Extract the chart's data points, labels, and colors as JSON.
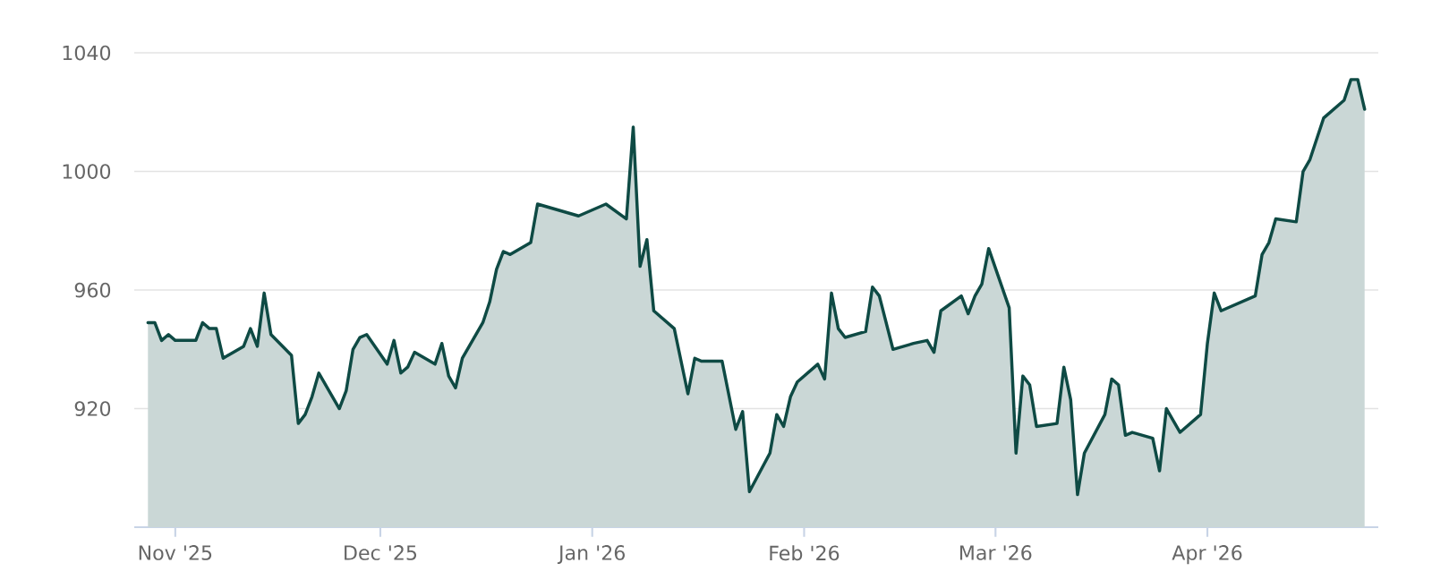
{
  "chart_data": {
    "type": "area",
    "color": "#0e4a44",
    "x": [
      "2025-10-28",
      "2025-10-29",
      "2025-10-30",
      "2025-10-31",
      "2025-11-01",
      "2025-11-04",
      "2025-11-05",
      "2025-11-06",
      "2025-11-07",
      "2025-11-08",
      "2025-11-11",
      "2025-11-12",
      "2025-11-13",
      "2025-11-14",
      "2025-11-15",
      "2025-11-18",
      "2025-11-19",
      "2025-11-20",
      "2025-11-21",
      "2025-11-22",
      "2025-11-25",
      "2025-11-26",
      "2025-11-27",
      "2025-11-28",
      "2025-11-29",
      "2025-12-02",
      "2025-12-03",
      "2025-12-04",
      "2025-12-05",
      "2025-12-06",
      "2025-12-09",
      "2025-12-10",
      "2025-12-11",
      "2025-12-12",
      "2025-12-13",
      "2025-12-16",
      "2025-12-17",
      "2025-12-18",
      "2025-12-19",
      "2025-12-20",
      "2025-12-23",
      "2025-12-24",
      "2025-12-30",
      "2026-01-03",
      "2026-01-06",
      "2026-01-07",
      "2026-01-08",
      "2026-01-09",
      "2026-01-10",
      "2026-01-13",
      "2026-01-15",
      "2026-01-16",
      "2026-01-17",
      "2026-01-20",
      "2026-01-22",
      "2026-01-23",
      "2026-01-24",
      "2026-01-27",
      "2026-01-28",
      "2026-01-29",
      "2026-01-30",
      "2026-01-31",
      "2026-02-03",
      "2026-02-04",
      "2026-02-05",
      "2026-02-06",
      "2026-02-07",
      "2026-02-10",
      "2026-02-11",
      "2026-02-12",
      "2026-02-14",
      "2026-02-17",
      "2026-02-19",
      "2026-02-20",
      "2026-02-21",
      "2026-02-24",
      "2026-02-25",
      "2026-02-26",
      "2026-02-27",
      "2026-02-28",
      "2026-03-03",
      "2026-03-04",
      "2026-03-05",
      "2026-03-06",
      "2026-03-07",
      "2026-03-10",
      "2026-03-11",
      "2026-03-12",
      "2026-03-13",
      "2026-03-14",
      "2026-03-17",
      "2026-03-18",
      "2026-03-19",
      "2026-03-20",
      "2026-03-21",
      "2026-03-24",
      "2026-03-25",
      "2026-03-26",
      "2026-03-28",
      "2026-03-31",
      "2026-04-01",
      "2026-04-02",
      "2026-04-03",
      "2026-04-08",
      "2026-04-09",
      "2026-04-10",
      "2026-04-11",
      "2026-04-14",
      "2026-04-15",
      "2026-04-16",
      "2026-04-18",
      "2026-04-21",
      "2026-04-22",
      "2026-04-23",
      "2026-04-24"
    ],
    "values": [
      949,
      949,
      943,
      945,
      943,
      943,
      949,
      947,
      947,
      937,
      941,
      947,
      941,
      959,
      945,
      938,
      915,
      918,
      924,
      932,
      920,
      926,
      940,
      944,
      945,
      935,
      943,
      932,
      934,
      939,
      935,
      942,
      931,
      927,
      937,
      949,
      956,
      967,
      973,
      972,
      976,
      989,
      985,
      989,
      984,
      1015,
      968,
      977,
      953,
      947,
      925,
      937,
      936,
      936,
      913,
      919,
      892,
      905,
      918,
      914,
      924,
      929,
      935,
      930,
      959,
      947,
      944,
      946,
      961,
      958,
      940,
      942,
      943,
      939,
      953,
      958,
      952,
      958,
      962,
      974,
      954,
      905,
      931,
      928,
      914,
      915,
      934,
      923,
      891,
      905,
      918,
      930,
      928,
      911,
      912,
      910,
      899,
      920,
      912,
      918,
      942,
      959,
      953,
      958,
      972,
      976,
      984,
      983,
      1000,
      1004,
      1018,
      1024,
      1031,
      1031,
      1021
    ],
    "xlim": [
      "2025-10-26",
      "2026-04-26"
    ],
    "xticks": [
      {
        "value": "2025-11-01",
        "label": "Nov '25"
      },
      {
        "value": "2025-12-01",
        "label": "Dec '25"
      },
      {
        "value": "2026-01-01",
        "label": "Jan '26"
      },
      {
        "value": "2026-02-01",
        "label": "Feb '26"
      },
      {
        "value": "2026-03-01",
        "label": "Mar '26"
      },
      {
        "value": "2026-04-01",
        "label": "Apr '26"
      }
    ],
    "ylim": [
      880,
      1040
    ],
    "yticks": [
      920,
      960,
      1000,
      1040
    ],
    "grid": "y"
  }
}
